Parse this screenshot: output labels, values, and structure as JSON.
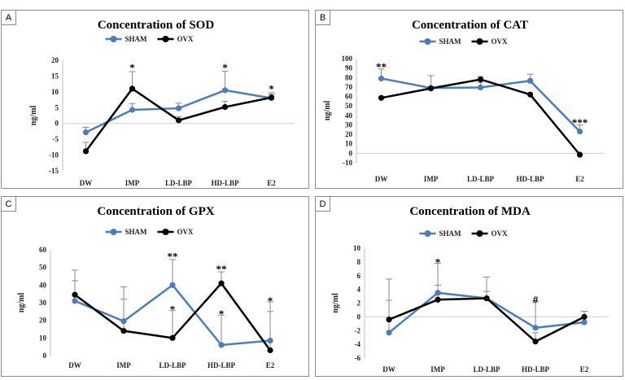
{
  "chart_data": [
    {
      "panel": "A",
      "type": "line",
      "title": "Concentration of SOD",
      "xlabel": "",
      "ylabel": "ng/ml",
      "categories": [
        "DW",
        "IMP",
        "LD-LBP",
        "HD-LBP",
        "E2"
      ],
      "ylim": [
        -15,
        20
      ],
      "yticks": [
        -15,
        -10,
        -5,
        0,
        5,
        10,
        15,
        20
      ],
      "yticklabels": [
        "-15",
        "-10",
        "-5",
        "0",
        "5",
        "10",
        "15",
        "20"
      ],
      "grid": false,
      "series": [
        {
          "name": "SHAM",
          "color": "#4a7ebb",
          "values": [
            -2.8,
            4.3,
            4.8,
            10.5,
            8.0
          ],
          "errors": [
            1.6,
            2.0,
            1.6,
            6.0,
            1.2
          ]
        },
        {
          "name": "OVX",
          "color": "#000000",
          "values": [
            -8.8,
            11.0,
            1.0,
            5.2,
            8.2
          ],
          "errors": [
            2.8,
            5.4,
            1.2,
            1.8,
            1.5
          ]
        }
      ],
      "annotations": [
        {
          "category": "IMP",
          "value": 17.5,
          "text": "*"
        },
        {
          "category": "HD-LBP",
          "value": 17.5,
          "text": "*"
        },
        {
          "category": "E2",
          "value": 10.8,
          "text": "*"
        }
      ]
    },
    {
      "panel": "B",
      "type": "line",
      "title": "Concentration of CAT",
      "xlabel": "",
      "ylabel": "ng/ml",
      "categories": [
        "DW",
        "IMP",
        "LD-LBP",
        "HD-LBP",
        "E2"
      ],
      "ylim": [
        -10,
        100
      ],
      "yticks": [
        -10,
        0,
        10,
        20,
        30,
        40,
        50,
        60,
        70,
        80,
        90,
        100
      ],
      "yticklabels": [
        "-10",
        "0",
        "10",
        "20",
        "30",
        "40",
        "50",
        "60",
        "70",
        "80",
        "90",
        "100"
      ],
      "grid": false,
      "series": [
        {
          "name": "SHAM",
          "color": "#4a7ebb",
          "values": [
            79,
            69,
            69.5,
            76.5,
            23
          ],
          "errors": [
            10,
            13,
            5,
            7,
            7
          ]
        },
        {
          "name": "OVX",
          "color": "#000000",
          "values": [
            58.5,
            68.5,
            78,
            62,
            -1.5
          ],
          "errors": [
            0,
            0,
            3,
            0,
            0
          ]
        }
      ],
      "annotations": [
        {
          "category": "DW",
          "value": 91,
          "text": "**"
        },
        {
          "category": "E2",
          "value": 32,
          "text": "***"
        }
      ]
    },
    {
      "panel": "C",
      "type": "line",
      "title": "Concentration of GPX",
      "xlabel": "",
      "ylabel": "ng/ml",
      "categories": [
        "DW",
        "IMP",
        "LD-LBP",
        "HD-LBP",
        "E2"
      ],
      "ylim": [
        0,
        60
      ],
      "yticks": [
        0,
        10,
        20,
        30,
        40,
        50,
        60
      ],
      "yticklabels": [
        "0",
        "10",
        "20",
        "30",
        "40",
        "50",
        "60"
      ],
      "grid": false,
      "series": [
        {
          "name": "SHAM",
          "color": "#4a7ebb",
          "values": [
            31,
            19.5,
            40,
            6,
            8.5
          ],
          "errors": [
            17.5,
            19.5,
            14.5,
            17,
            22
          ]
        },
        {
          "name": "OVX",
          "color": "#000000",
          "values": [
            34.5,
            14,
            10,
            41,
            3
          ],
          "errors": [
            8,
            18,
            15.5,
            6.5,
            22
          ]
        }
      ],
      "annotations": [
        {
          "category": "LD-LBP",
          "value": 56,
          "text": "**"
        },
        {
          "category": "LD-LBP",
          "value": 26,
          "text": "*"
        },
        {
          "category": "HD-LBP",
          "value": 49,
          "text": "**"
        },
        {
          "category": "HD-LBP",
          "value": 23.5,
          "text": "*"
        },
        {
          "category": "E2",
          "value": 31,
          "text": "*"
        }
      ]
    },
    {
      "panel": "D",
      "type": "line",
      "title": "Concentration of MDA",
      "xlabel": "",
      "ylabel": "ng/ml",
      "categories": [
        "DW",
        "IMP",
        "LD-LBP",
        "HD-LBP",
        "E2"
      ],
      "ylim": [
        -6,
        10
      ],
      "yticks": [
        -6,
        -4,
        -2,
        0,
        2,
        4,
        6,
        8,
        10
      ],
      "yticklabels": [
        "-6",
        "-4",
        "-2",
        "0",
        "2",
        "4",
        "6",
        "8",
        "10"
      ],
      "grid": false,
      "series": [
        {
          "name": "SHAM",
          "color": "#4a7ebb",
          "values": [
            -2.3,
            3.5,
            2.7,
            -1.6,
            -0.8
          ],
          "errors": [
            7.8,
            4.3,
            3.1,
            3.8,
            1.6
          ]
        },
        {
          "name": "OVX",
          "color": "#000000",
          "values": [
            -0.4,
            2.5,
            2.7,
            -3.6,
            0.0
          ],
          "errors": [
            2.8,
            2.1,
            1.0,
            1.3,
            0.8
          ]
        }
      ],
      "annotations": [
        {
          "category": "IMP",
          "value": 7.9,
          "text": "*"
        },
        {
          "category": "HD-LBP",
          "value": 2.5,
          "text": "#"
        }
      ]
    }
  ]
}
